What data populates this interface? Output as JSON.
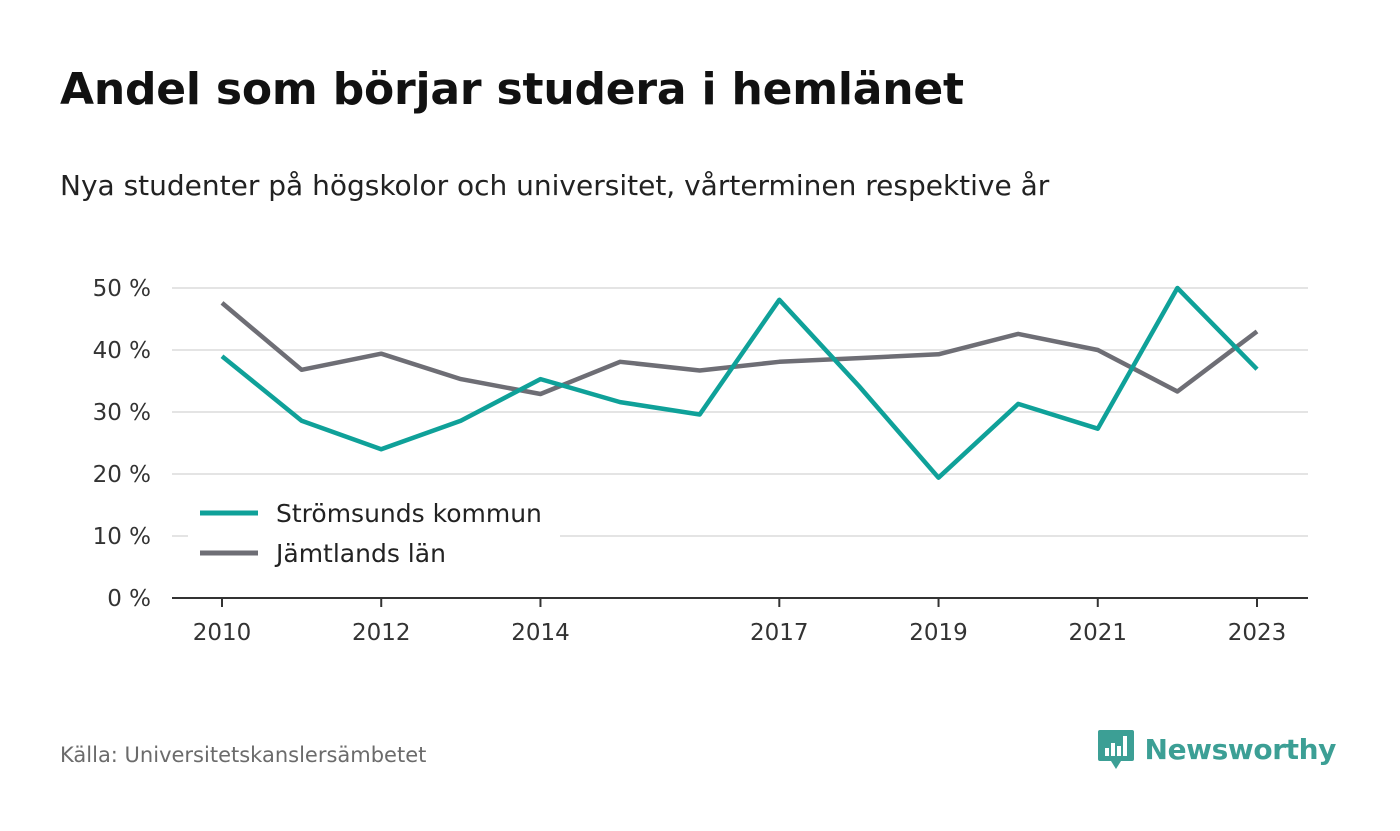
{
  "header": {
    "title": "Andel som börjar studera i hemlänet",
    "subtitle": "Nya studenter på högskolor och universitet, vårterminen respektive år"
  },
  "footer": {
    "source": "Källa: Universitetskanslersämbetet",
    "brand": "Newsworthy",
    "brand_icon": "newsworthy-logo-icon",
    "brand_color": "#3c9f95"
  },
  "chart_data": {
    "type": "line",
    "title": "Andel som börjar studera i hemlänet",
    "subtitle": "Nya studenter på högskolor och universitet, vårterminen respektive år",
    "xlabel": "",
    "ylabel": "",
    "x": [
      2010,
      2011,
      2012,
      2013,
      2014,
      2015,
      2016,
      2017,
      2018,
      2019,
      2020,
      2021,
      2022,
      2023
    ],
    "xticks": [
      2010,
      2012,
      2014,
      2017,
      2019,
      2021,
      2023
    ],
    "xtick_labels": [
      "2010",
      "2012",
      "2014",
      "2017",
      "2019",
      "2021",
      "2023"
    ],
    "ylim": [
      0,
      50
    ],
    "yticks": [
      0,
      10,
      20,
      30,
      40,
      50
    ],
    "ytick_labels": [
      "0 %",
      "10 %",
      "20 %",
      "30 %",
      "40 %",
      "50 %"
    ],
    "grid": true,
    "legend_position": "bottom-left",
    "series": [
      {
        "name": "Strömsunds kommun",
        "color": "#0fa199",
        "values": [
          39.0,
          28.6,
          24.0,
          28.6,
          35.3,
          31.6,
          29.6,
          48.1,
          34.2,
          19.4,
          31.3,
          27.3,
          50.0,
          36.9
        ]
      },
      {
        "name": "Jämtlands län",
        "color": "#6e6e75",
        "values": [
          47.6,
          36.8,
          39.4,
          35.3,
          32.9,
          38.1,
          36.7,
          38.1,
          38.7,
          39.3,
          42.6,
          40.0,
          33.3,
          43.0
        ]
      }
    ]
  }
}
